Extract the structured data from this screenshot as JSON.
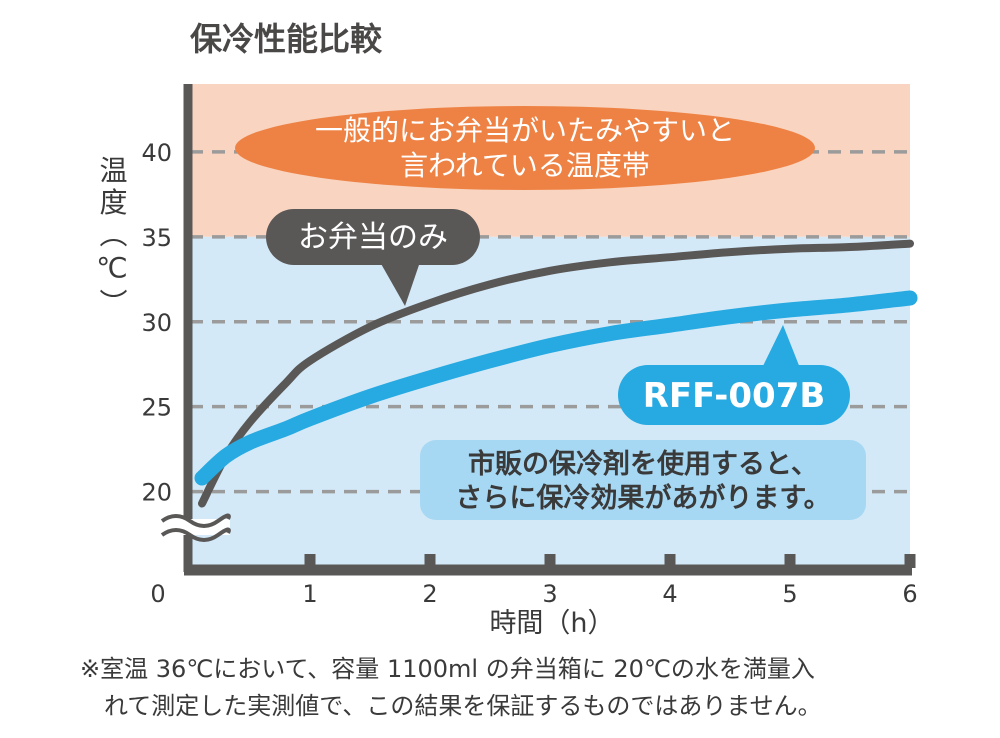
{
  "colors": {
    "danger_band": "#f9d4c0",
    "safe_band": "#d3e9f7",
    "axis": "#5a5757",
    "grid": "#9b9b9b",
    "series_bento": "#5a5757",
    "series_rff": "#27a9e1",
    "callout_danger": "#ee8244",
    "callout_bento": "#5a5757",
    "callout_rff": "#27a9e1",
    "callout_note": "#a7d8f3"
  },
  "chart_data": {
    "type": "line",
    "title": "保冷性能比較",
    "xlabel": "時間（h）",
    "ylabel": "温度（℃）",
    "xlim": [
      0,
      6
    ],
    "ylim": [
      15.5,
      44
    ],
    "x_ticks": [
      "0",
      "1",
      "2",
      "3",
      "4",
      "5",
      "6"
    ],
    "y_ticks": [
      "20",
      "25",
      "30",
      "35",
      "40"
    ],
    "grid": "horizontal dashed at y ticks",
    "y_axis_break": true,
    "band": {
      "y_from": 35,
      "label_lines": [
        "一般的にお弁当がいたみやすいと",
        "言われている温度帯"
      ]
    },
    "series": [
      {
        "name": "お弁当のみ",
        "x": [
          0.1,
          0.3,
          0.5,
          0.8,
          1.0,
          1.5,
          2.0,
          2.5,
          3.0,
          3.5,
          4.0,
          4.5,
          5.0,
          5.5,
          6.0
        ],
        "y": [
          19.3,
          22.1,
          24.1,
          26.4,
          27.7,
          29.7,
          31.1,
          32.2,
          33.0,
          33.5,
          33.8,
          34.1,
          34.3,
          34.4,
          34.6
        ]
      },
      {
        "name": "RFF-007B",
        "x": [
          0.1,
          0.3,
          0.5,
          0.8,
          1.0,
          1.5,
          2.0,
          2.5,
          3.0,
          3.5,
          4.0,
          4.5,
          5.0,
          5.5,
          6.0
        ],
        "y": [
          20.8,
          22.1,
          22.9,
          23.7,
          24.3,
          25.6,
          26.7,
          27.7,
          28.6,
          29.3,
          29.8,
          30.3,
          30.7,
          31.0,
          31.4
        ]
      }
    ],
    "annotations": {
      "danger_zone_lines": [
        "一般的にお弁当がいたみやすいと",
        "言われている温度帯"
      ],
      "bento_only": "お弁当のみ",
      "product": "RFF-007B",
      "note_lines": [
        "市販の保冷剤を使用すると、",
        "さらに保冷効果があがります。"
      ]
    }
  },
  "footnote": {
    "line1": "※室温 36℃において、容量 1100ml の弁当箱に 20℃の水を満量入",
    "line2": "れて測定した実測値で、この結果を保証するものではありません。"
  }
}
